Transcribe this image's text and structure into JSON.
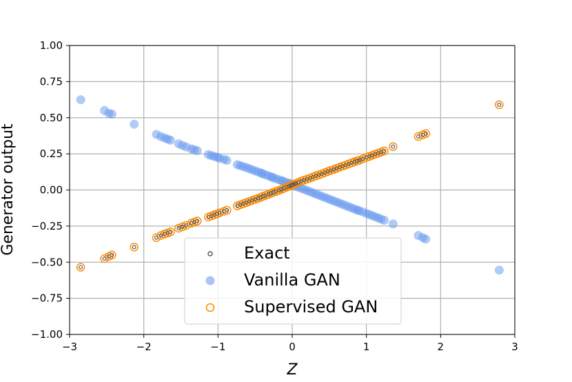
{
  "chart_data": {
    "type": "scatter",
    "xlabel": "Z",
    "ylabel": "Generator output",
    "xlim": [
      -3,
      3
    ],
    "ylim": [
      -1.0,
      1.0
    ],
    "xticks": [
      -3,
      -2,
      -1,
      0,
      1,
      2,
      3
    ],
    "xtick_labels": [
      "−3",
      "−2",
      "−1",
      "0",
      "1",
      "2",
      "3"
    ],
    "yticks": [
      -1.0,
      -0.75,
      -0.5,
      -0.25,
      0.0,
      0.25,
      0.5,
      0.75,
      1.0
    ],
    "ytick_labels": [
      "−1.00",
      "−0.75",
      "−0.50",
      "−0.25",
      "0.00",
      "0.25",
      "0.50",
      "0.75",
      "1.00"
    ],
    "grid": true,
    "legend_position": "lower-center",
    "colors": {
      "exact": "#555555",
      "vanilla": "#6495ED",
      "supervised": "#FF8C00"
    },
    "x": [
      -2.85,
      -2.53,
      -2.47,
      -2.43,
      -2.13,
      -1.83,
      -1.77,
      -1.72,
      -1.68,
      -1.64,
      -1.53,
      -1.48,
      -1.43,
      -1.36,
      -1.32,
      -1.28,
      -1.13,
      -1.09,
      -1.05,
      -1.01,
      -0.98,
      -0.92,
      -0.88,
      -0.74,
      -0.7,
      -0.66,
      -0.62,
      -0.58,
      -0.54,
      -0.5,
      -0.46,
      -0.42,
      -0.4,
      -0.36,
      -0.32,
      -0.28,
      -0.26,
      -0.22,
      -0.18,
      -0.14,
      -0.12,
      -0.08,
      -0.04,
      -0.02,
      0.0,
      0.02,
      0.05,
      0.08,
      0.12,
      0.16,
      0.2,
      0.24,
      0.28,
      0.32,
      0.36,
      0.4,
      0.44,
      0.48,
      0.52,
      0.56,
      0.6,
      0.64,
      0.68,
      0.72,
      0.76,
      0.8,
      0.84,
      0.88,
      0.9,
      0.95,
      1.0,
      1.04,
      1.08,
      1.12,
      1.16,
      1.2,
      1.24,
      1.36,
      1.7,
      1.76,
      1.8,
      2.79
    ],
    "series": [
      {
        "name": "Exact",
        "values": [
          -0.535,
          -0.475,
          -0.46,
          -0.45,
          -0.395,
          -0.33,
          -0.315,
          -0.305,
          -0.298,
          -0.29,
          -0.265,
          -0.255,
          -0.245,
          -0.23,
          -0.223,
          -0.215,
          -0.188,
          -0.18,
          -0.172,
          -0.165,
          -0.158,
          -0.148,
          -0.14,
          -0.11,
          -0.102,
          -0.095,
          -0.088,
          -0.08,
          -0.072,
          -0.065,
          -0.058,
          -0.05,
          -0.045,
          -0.038,
          -0.03,
          -0.022,
          -0.018,
          -0.01,
          -0.003,
          0.005,
          0.01,
          0.018,
          0.025,
          0.03,
          0.035,
          0.04,
          0.045,
          0.052,
          0.06,
          0.068,
          0.075,
          0.082,
          0.09,
          0.098,
          0.105,
          0.112,
          0.12,
          0.128,
          0.135,
          0.142,
          0.15,
          0.158,
          0.165,
          0.172,
          0.18,
          0.188,
          0.195,
          0.202,
          0.205,
          0.215,
          0.225,
          0.232,
          0.24,
          0.248,
          0.255,
          0.262,
          0.27,
          0.3,
          0.37,
          0.382,
          0.39,
          0.59
        ]
      },
      {
        "name": "Vanilla GAN",
        "values": [
          0.625,
          0.55,
          0.53,
          0.525,
          0.455,
          0.385,
          0.37,
          0.36,
          0.352,
          0.345,
          0.32,
          0.308,
          0.298,
          0.285,
          0.278,
          0.272,
          0.245,
          0.238,
          0.232,
          0.226,
          0.22,
          0.212,
          0.205,
          0.175,
          0.168,
          0.162,
          0.155,
          0.148,
          0.14,
          0.132,
          0.125,
          0.118,
          0.112,
          0.105,
          0.098,
          0.09,
          0.086,
          0.078,
          0.071,
          0.064,
          0.06,
          0.053,
          0.046,
          0.042,
          0.038,
          0.033,
          0.027,
          0.02,
          0.012,
          0.004,
          -0.004,
          -0.012,
          -0.02,
          -0.028,
          -0.036,
          -0.044,
          -0.052,
          -0.06,
          -0.068,
          -0.076,
          -0.084,
          -0.092,
          -0.1,
          -0.108,
          -0.116,
          -0.124,
          -0.132,
          -0.14,
          -0.143,
          -0.152,
          -0.162,
          -0.17,
          -0.178,
          -0.186,
          -0.194,
          -0.202,
          -0.21,
          -0.235,
          -0.315,
          -0.33,
          -0.34,
          -0.555
        ]
      },
      {
        "name": "Supervised GAN",
        "values": [
          -0.535,
          -0.475,
          -0.46,
          -0.45,
          -0.395,
          -0.33,
          -0.315,
          -0.305,
          -0.298,
          -0.29,
          -0.265,
          -0.255,
          -0.245,
          -0.23,
          -0.223,
          -0.215,
          -0.188,
          -0.18,
          -0.172,
          -0.165,
          -0.158,
          -0.148,
          -0.14,
          -0.11,
          -0.102,
          -0.095,
          -0.088,
          -0.08,
          -0.072,
          -0.065,
          -0.058,
          -0.05,
          -0.045,
          -0.038,
          -0.03,
          -0.022,
          -0.018,
          -0.01,
          -0.003,
          0.005,
          0.01,
          0.018,
          0.025,
          0.03,
          0.035,
          0.04,
          0.045,
          0.052,
          0.06,
          0.068,
          0.075,
          0.082,
          0.09,
          0.098,
          0.105,
          0.112,
          0.12,
          0.128,
          0.135,
          0.142,
          0.15,
          0.158,
          0.165,
          0.172,
          0.18,
          0.188,
          0.195,
          0.202,
          0.205,
          0.215,
          0.225,
          0.232,
          0.24,
          0.248,
          0.255,
          0.262,
          0.27,
          0.3,
          0.37,
          0.382,
          0.39,
          0.59
        ]
      }
    ]
  }
}
